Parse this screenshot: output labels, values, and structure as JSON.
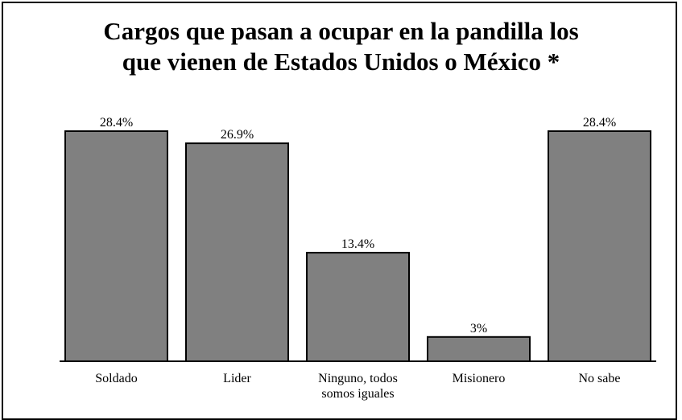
{
  "chart_data": {
    "type": "bar",
    "title_lines": [
      "Cargos que pasan a ocupar en la pandilla los",
      "que vienen de Estados Unidos o México *"
    ],
    "categories": [
      [
        "Soldado"
      ],
      [
        "Lider"
      ],
      [
        "Ninguno, todos",
        "somos iguales"
      ],
      [
        "Misionero"
      ],
      [
        "No sabe"
      ]
    ],
    "values": [
      28.4,
      26.9,
      13.4,
      3,
      28.4
    ],
    "value_labels": [
      "28.4%",
      "26.9%",
      "13.4%",
      "3%",
      "28.4%"
    ],
    "ylim": [
      0,
      28.4
    ],
    "grid": false,
    "legend": "none",
    "colors": {
      "bar_fill": "#808080",
      "bar_stroke": "#000000",
      "baseline": "#000000"
    }
  }
}
